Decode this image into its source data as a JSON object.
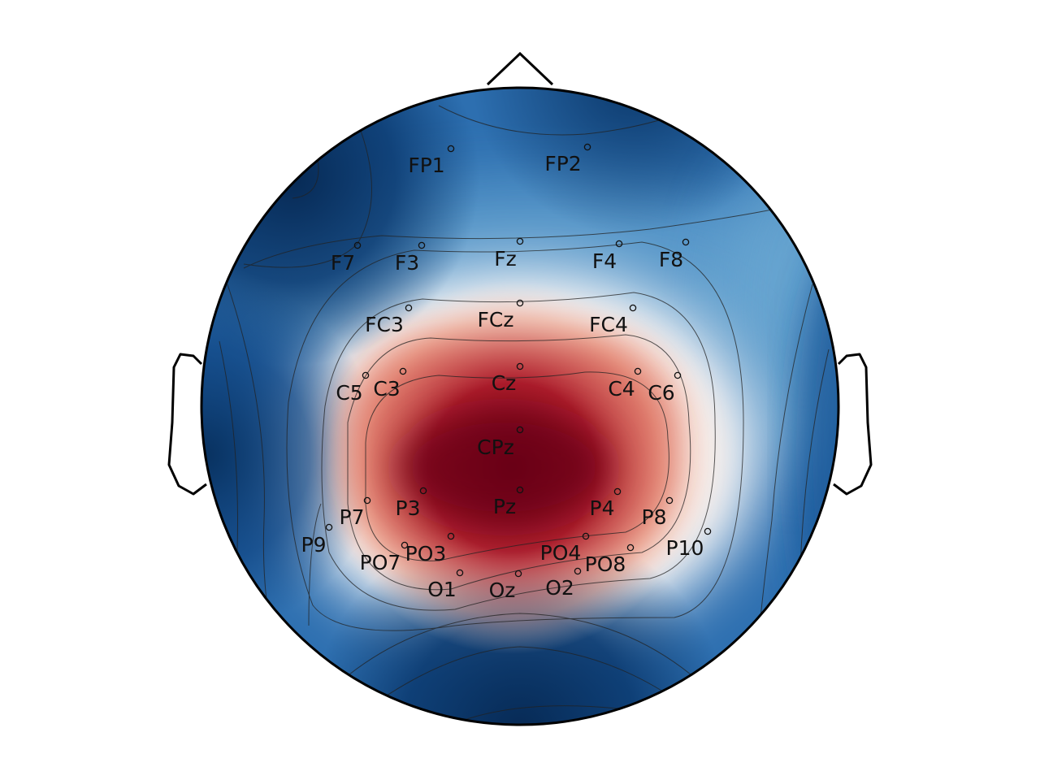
{
  "figure": {
    "type": "eeg-topomap",
    "colormap": {
      "low": "#0b3a70",
      "mid": "#f4f4f4",
      "high": "#6b0018"
    },
    "nose_icon": "nose-triangle",
    "ear_icon": "ear-outline"
  },
  "electrodes": [
    {
      "name": "FP1",
      "value": -0.55
    },
    {
      "name": "FP2",
      "value": -0.55
    },
    {
      "name": "F7",
      "value": -0.85
    },
    {
      "name": "F3",
      "value": -0.15
    },
    {
      "name": "Fz",
      "value": -0.2
    },
    {
      "name": "F4",
      "value": -0.15
    },
    {
      "name": "F8",
      "value": -0.3
    },
    {
      "name": "FC3",
      "value": 0.05
    },
    {
      "name": "FCz",
      "value": 0.1
    },
    {
      "name": "FC4",
      "value": 0.05
    },
    {
      "name": "C5",
      "value": 0.3
    },
    {
      "name": "C3",
      "value": 0.6
    },
    {
      "name": "Cz",
      "value": 0.8
    },
    {
      "name": "C4",
      "value": 0.6
    },
    {
      "name": "C6",
      "value": 0.35
    },
    {
      "name": "CPz",
      "value": 0.95
    },
    {
      "name": "P7",
      "value": 0.25
    },
    {
      "name": "P3",
      "value": 0.9
    },
    {
      "name": "Pz",
      "value": 0.9
    },
    {
      "name": "P4",
      "value": 0.8
    },
    {
      "name": "P8",
      "value": 0.3
    },
    {
      "name": "P9",
      "value": -0.3
    },
    {
      "name": "P10",
      "value": -0.3
    },
    {
      "name": "PO7",
      "value": 0.25
    },
    {
      "name": "PO3",
      "value": 0.5
    },
    {
      "name": "PO4",
      "value": 0.5
    },
    {
      "name": "PO8",
      "value": 0.25
    },
    {
      "name": "O1",
      "value": 0.2
    },
    {
      "name": "Oz",
      "value": 0.1
    },
    {
      "name": "O2",
      "value": 0.2
    }
  ]
}
